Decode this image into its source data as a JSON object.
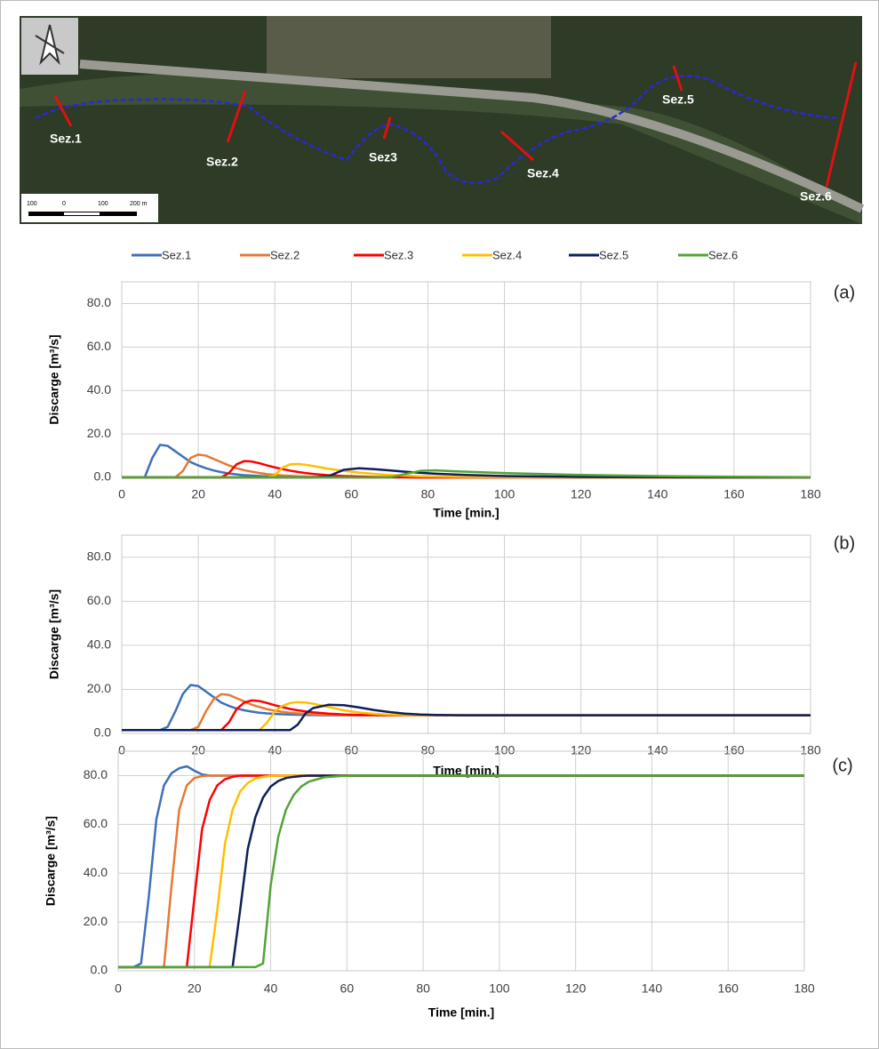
{
  "map": {
    "sections": [
      "Sez.1",
      "Sez.2",
      "Sez3",
      "Sez.4",
      "Sez.5",
      "Sez.6"
    ],
    "scale": [
      "100",
      "0",
      "100",
      "200 m"
    ]
  },
  "chart_data": [
    {
      "type": "line",
      "panel_label": "(a)",
      "xlabel": "Time [min.]",
      "ylabel": "Discarge [m³/s]",
      "grid": true,
      "x": [
        0,
        2,
        4,
        6,
        8,
        10,
        12,
        14,
        16,
        18,
        20,
        22,
        24,
        26,
        28,
        30,
        32,
        34,
        36,
        38,
        40,
        42,
        44,
        46,
        48,
        50,
        54,
        58,
        62,
        66,
        70,
        74,
        78,
        82,
        90,
        100,
        120,
        140,
        160,
        180
      ],
      "xlim": [
        0,
        180
      ],
      "xticks": [
        0,
        20,
        40,
        60,
        80,
        100,
        120,
        140,
        160,
        180
      ],
      "ylim": [
        0,
        90
      ],
      "yticks": [
        {
          "value": 0,
          "label": "0.0"
        },
        {
          "value": 20,
          "label": "20.0"
        },
        {
          "value": 40,
          "label": "40.0"
        },
        {
          "value": 60,
          "label": "60.0"
        },
        {
          "value": 80,
          "label": "80.0"
        }
      ],
      "series": [
        {
          "name": "Sez.1",
          "color": "#3f70b9",
          "values": [
            0,
            0,
            0,
            0,
            9,
            15,
            14.5,
            12,
            9.5,
            7,
            5.5,
            4.2,
            3.2,
            2.4,
            1.8,
            1.4,
            1,
            0.8,
            0.6,
            0.4,
            0.3,
            0.2,
            0.1,
            0.1,
            0,
            0,
            0,
            0,
            0,
            0,
            0,
            0,
            0,
            0,
            0,
            0,
            0,
            0,
            0,
            0
          ]
        },
        {
          "name": "Sez.2",
          "color": "#e57a35",
          "values": [
            0,
            0,
            0,
            0,
            0,
            0,
            0,
            0,
            3,
            9,
            10.5,
            10,
            8.5,
            7,
            5.5,
            4.2,
            3.3,
            2.6,
            2,
            1.5,
            1.2,
            0.9,
            0.7,
            0.5,
            0.4,
            0.3,
            0.2,
            0.1,
            0,
            0,
            0,
            0,
            0,
            0,
            0,
            0,
            0,
            0,
            0,
            0
          ]
        },
        {
          "name": "Sez.3",
          "color": "#ff0000",
          "values": [
            0,
            0,
            0,
            0,
            0,
            0,
            0,
            0,
            0,
            0,
            0,
            0,
            0,
            0,
            2,
            6,
            7.5,
            7.3,
            6.5,
            5.5,
            4.6,
            3.8,
            3.1,
            2.5,
            2,
            1.6,
            1,
            0.6,
            0.4,
            0.2,
            0.1,
            0.1,
            0,
            0,
            0,
            0,
            0,
            0,
            0,
            0
          ]
        },
        {
          "name": "Sez.4",
          "color": "#ffbf00",
          "values": [
            0,
            0,
            0,
            0,
            0,
            0,
            0,
            0,
            0,
            0,
            0,
            0,
            0,
            0,
            0,
            0,
            0,
            0,
            0,
            0,
            1,
            4.5,
            6,
            6.2,
            5.8,
            5.2,
            4,
            3,
            2.2,
            1.6,
            1.1,
            0.8,
            0.5,
            0.4,
            0.2,
            0.1,
            0,
            0,
            0,
            0
          ]
        },
        {
          "name": "Sez.5",
          "color": "#0e1f5b",
          "values": [
            0,
            0,
            0,
            0,
            0,
            0,
            0,
            0,
            0,
            0,
            0,
            0,
            0,
            0,
            0,
            0,
            0,
            0,
            0,
            0,
            0,
            0,
            0,
            0,
            0,
            0,
            0.5,
            3.5,
            4.2,
            3.8,
            3.2,
            2.6,
            2.1,
            1.7,
            1.1,
            0.6,
            0.2,
            0.1,
            0,
            0
          ]
        },
        {
          "name": "Sez.6",
          "color": "#52a535",
          "values": [
            0,
            0,
            0,
            0,
            0,
            0,
            0,
            0,
            0,
            0,
            0,
            0,
            0,
            0,
            0,
            0,
            0,
            0,
            0,
            0,
            0,
            0,
            0,
            0,
            0,
            0,
            0,
            0,
            0,
            0,
            0,
            1.5,
            3,
            3.2,
            2.6,
            2,
            1.1,
            0.6,
            0.3,
            0.1
          ]
        }
      ]
    },
    {
      "type": "line",
      "panel_label": "(b)",
      "xlabel": "Time [min.]",
      "ylabel": "Discarge [m³/s]",
      "grid": true,
      "x": [
        0,
        2,
        4,
        6,
        8,
        10,
        12,
        14,
        16,
        18,
        20,
        22,
        24,
        26,
        28,
        30,
        32,
        34,
        36,
        38,
        40,
        42,
        44,
        46,
        48,
        50,
        54,
        58,
        62,
        66,
        70,
        74,
        78,
        82,
        90,
        100,
        120,
        140,
        160,
        180
      ],
      "xlim": [
        0,
        180
      ],
      "xticks": [
        0,
        20,
        40,
        60,
        80,
        100,
        120,
        140,
        160,
        180
      ],
      "ylim": [
        0,
        90
      ],
      "yticks": [
        {
          "value": 0,
          "label": "0.0"
        },
        {
          "value": 20,
          "label": "20.0"
        },
        {
          "value": 40,
          "label": "40.0"
        },
        {
          "value": 60,
          "label": "60.0"
        },
        {
          "value": 80,
          "label": "80.0"
        }
      ],
      "series": [
        {
          "color": "#3f70b9",
          "values": [
            1.5,
            1.5,
            1.5,
            1.5,
            1.5,
            1.5,
            3,
            10,
            18,
            22,
            21.5,
            19,
            16.5,
            14,
            12.5,
            11.3,
            10.5,
            9.9,
            9.4,
            9.1,
            8.9,
            8.7,
            8.6,
            8.5,
            8.4,
            8.3,
            8.2,
            8.2,
            8.2,
            8.2,
            8.2,
            8.2,
            8.2,
            8.2,
            8.2,
            8.2,
            8.2,
            8.2,
            8.2,
            8.2
          ]
        },
        {
          "color": "#e57a35",
          "values": [
            1.5,
            1.5,
            1.5,
            1.5,
            1.5,
            1.5,
            1.5,
            1.5,
            1.5,
            1.5,
            3,
            10,
            15.5,
            17.8,
            17.5,
            16,
            14.5,
            13,
            12,
            11,
            10.3,
            9.8,
            9.4,
            9.1,
            8.9,
            8.7,
            8.5,
            8.3,
            8.2,
            8.2,
            8.2,
            8.2,
            8.2,
            8.2,
            8.2,
            8.2,
            8.2,
            8.2,
            8.2,
            8.2
          ]
        },
        {
          "color": "#ff0000",
          "values": [
            1.5,
            1.5,
            1.5,
            1.5,
            1.5,
            1.5,
            1.5,
            1.5,
            1.5,
            1.5,
            1.5,
            1.5,
            1.5,
            1.5,
            5,
            11,
            14,
            15,
            14.7,
            13.8,
            12.8,
            11.9,
            11.1,
            10.5,
            10,
            9.6,
            9,
            8.6,
            8.4,
            8.3,
            8.2,
            8.2,
            8.2,
            8.2,
            8.2,
            8.2,
            8.2,
            8.2,
            8.2,
            8.2
          ]
        },
        {
          "color": "#ffbf00",
          "values": [
            1.5,
            1.5,
            1.5,
            1.5,
            1.5,
            1.5,
            1.5,
            1.5,
            1.5,
            1.5,
            1.5,
            1.5,
            1.5,
            1.5,
            1.5,
            1.5,
            1.5,
            1.5,
            1.5,
            5,
            10,
            12.5,
            13.8,
            14.2,
            14,
            13.5,
            12,
            10.5,
            9.5,
            8.9,
            8.5,
            8.3,
            8.2,
            8.2,
            8.2,
            8.2,
            8.2,
            8.2,
            8.2,
            8.2
          ]
        },
        {
          "color": "#0e1f5b",
          "values": [
            1.5,
            1.5,
            1.5,
            1.5,
            1.5,
            1.5,
            1.5,
            1.5,
            1.5,
            1.5,
            1.5,
            1.5,
            1.5,
            1.5,
            1.5,
            1.5,
            1.5,
            1.5,
            1.5,
            1.5,
            1.5,
            1.5,
            1.5,
            4,
            9,
            11.5,
            13,
            12.8,
            11.8,
            10.6,
            9.7,
            9,
            8.6,
            8.4,
            8.2,
            8.2,
            8.2,
            8.2,
            8.2,
            8.2
          ]
        }
      ]
    },
    {
      "type": "line",
      "panel_label": "(c)",
      "xlabel": "Time [min.]",
      "ylabel": "Discarge [m³/s]",
      "grid": true,
      "x": [
        0,
        2,
        4,
        6,
        8,
        10,
        12,
        14,
        16,
        18,
        20,
        22,
        24,
        26,
        28,
        30,
        32,
        34,
        36,
        38,
        40,
        42,
        44,
        46,
        48,
        50,
        54,
        58,
        62,
        66,
        70,
        74,
        78,
        82,
        90,
        100,
        120,
        140,
        160,
        180
      ],
      "xlim": [
        0,
        180
      ],
      "xticks": [
        0,
        20,
        40,
        60,
        80,
        100,
        120,
        140,
        160,
        180
      ],
      "ylim": [
        0,
        90
      ],
      "yticks": [
        {
          "value": 0,
          "label": "0.0"
        },
        {
          "value": 20,
          "label": "20.0"
        },
        {
          "value": 40,
          "label": "40.0"
        },
        {
          "value": 60,
          "label": "60.0"
        },
        {
          "value": 80,
          "label": "80.0"
        }
      ],
      "series": [
        {
          "color": "#3f70b9",
          "values": [
            1.5,
            1.5,
            1.5,
            3,
            30,
            62,
            76,
            81,
            83,
            83.8,
            82,
            80.5,
            80,
            80,
            80,
            80,
            80,
            80,
            80,
            80,
            80,
            80,
            80,
            80,
            80,
            80,
            80,
            80,
            80,
            80,
            80,
            80,
            80,
            80,
            80,
            80,
            80,
            80,
            80,
            80
          ]
        },
        {
          "color": "#e57a35",
          "values": [
            1.5,
            1.5,
            1.5,
            1.5,
            1.5,
            1.5,
            1.5,
            35,
            66,
            76,
            79,
            79.8,
            80,
            80,
            80,
            80,
            80,
            80,
            80,
            80,
            80,
            80,
            80,
            80,
            80,
            80,
            80,
            80,
            80,
            80,
            80,
            80,
            80,
            80,
            80,
            80,
            80,
            80,
            80,
            80
          ]
        },
        {
          "color": "#ff0000",
          "values": [
            1.5,
            1.5,
            1.5,
            1.5,
            1.5,
            1.5,
            1.5,
            1.5,
            1.5,
            1.5,
            30,
            58,
            70,
            76,
            78.5,
            79.5,
            80,
            80,
            80,
            80,
            80,
            80,
            80,
            80,
            80,
            80,
            80,
            80,
            80,
            80,
            80,
            80,
            80,
            80,
            80,
            80,
            80,
            80,
            80,
            80
          ]
        },
        {
          "color": "#ffbf00",
          "values": [
            1.5,
            1.5,
            1.5,
            1.5,
            1.5,
            1.5,
            1.5,
            1.5,
            1.5,
            1.5,
            1.5,
            1.5,
            1.5,
            25,
            52,
            66,
            73.5,
            77,
            78.8,
            79.5,
            79.9,
            80,
            80,
            80,
            80,
            80,
            80,
            80,
            80,
            80,
            80,
            80,
            80,
            80,
            80,
            80,
            80,
            80,
            80,
            80
          ]
        },
        {
          "color": "#0e1f5b",
          "values": [
            1.5,
            1.5,
            1.5,
            1.5,
            1.5,
            1.5,
            1.5,
            1.5,
            1.5,
            1.5,
            1.5,
            1.5,
            1.5,
            1.5,
            1.5,
            1.5,
            25,
            50,
            63,
            71,
            75.5,
            77.8,
            79,
            79.5,
            79.8,
            80,
            80,
            80,
            80,
            80,
            80,
            80,
            80,
            80,
            80,
            80,
            80,
            80,
            80,
            80
          ]
        },
        {
          "color": "#52a535",
          "values": [
            1.5,
            1.5,
            1.5,
            1.5,
            1.5,
            1.5,
            1.5,
            1.5,
            1.5,
            1.5,
            1.5,
            1.5,
            1.5,
            1.5,
            1.5,
            1.5,
            1.5,
            1.5,
            1.5,
            3,
            35,
            55,
            66,
            72,
            75.5,
            77.5,
            79.3,
            79.8,
            80,
            80,
            80,
            80,
            80,
            80,
            80,
            80,
            80,
            80,
            80,
            80
          ]
        }
      ]
    }
  ]
}
